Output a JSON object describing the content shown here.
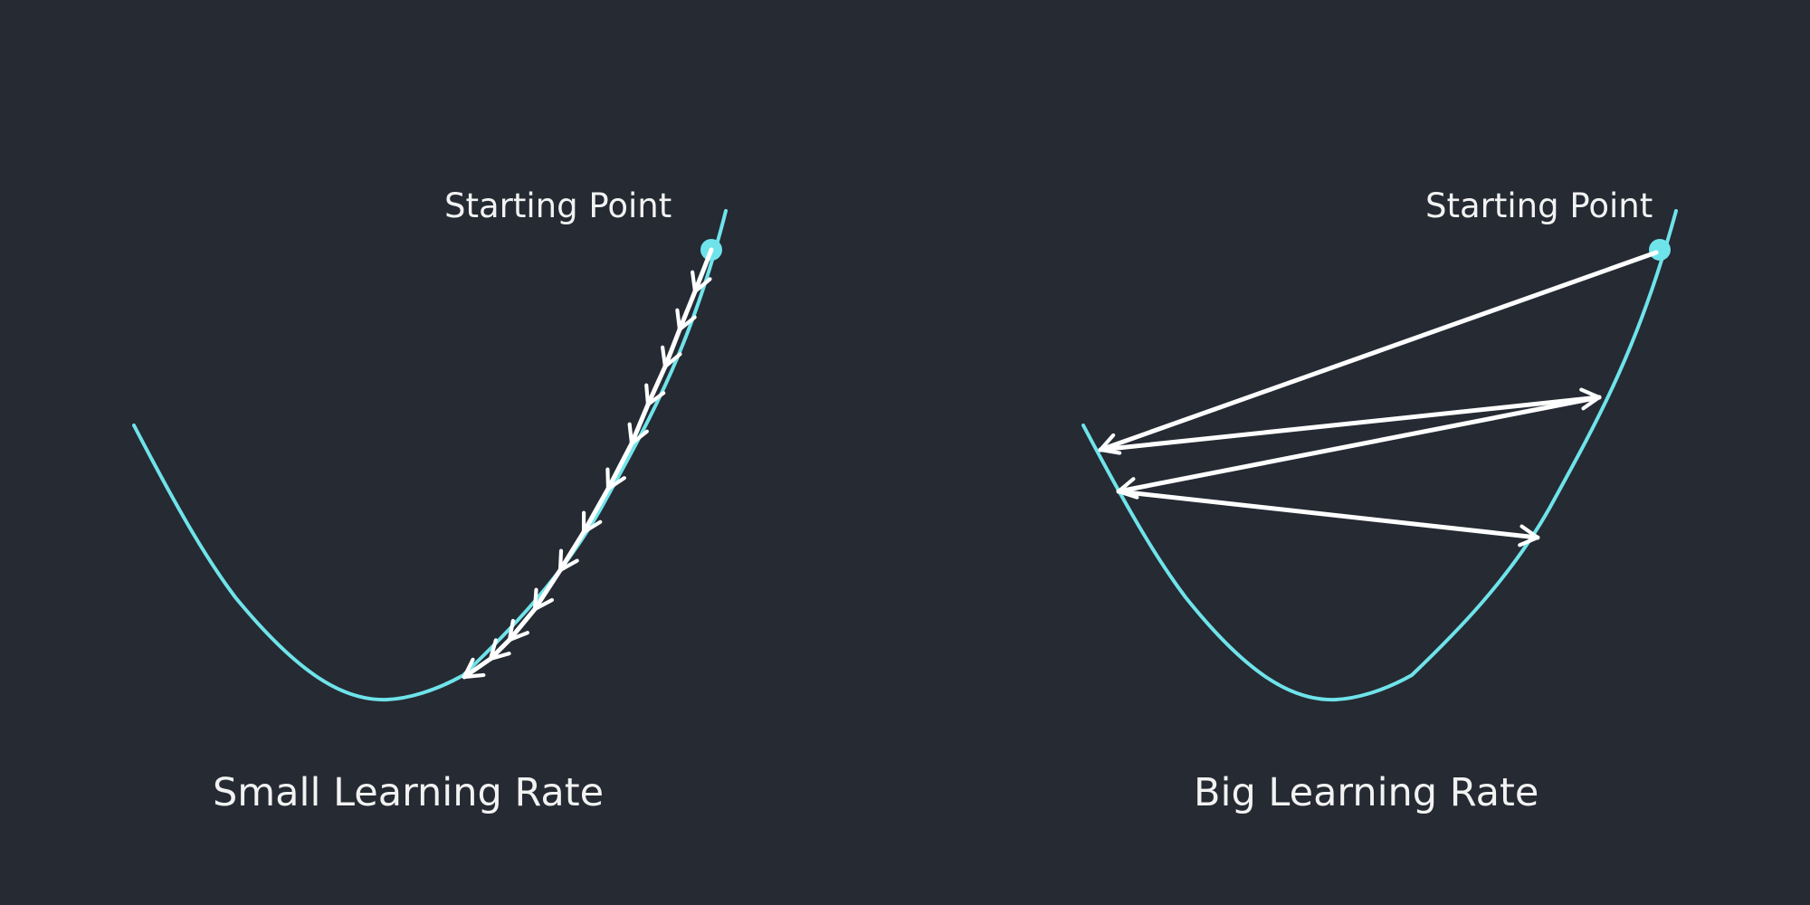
{
  "colors": {
    "background": "#252a33",
    "curve": "#6fe3ea",
    "arrow": "#ffffff",
    "text": "#f2f2f2"
  },
  "panels": [
    {
      "id": "small",
      "start_label": "Starting Point",
      "title": "Small Learning Rate"
    },
    {
      "id": "big",
      "start_label": "Starting Point",
      "title": "Big Learning Rate"
    }
  ]
}
